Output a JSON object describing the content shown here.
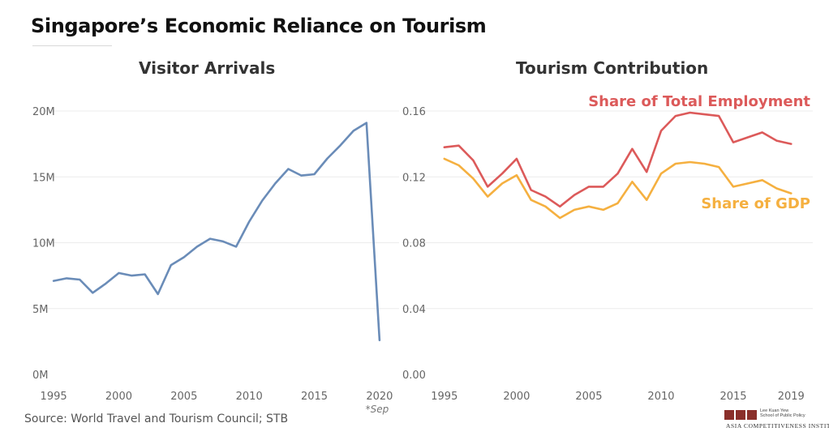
{
  "title": "Singapore’s Economic Reliance on Tourism",
  "source": "Source: World Travel and Tourism Council; STB",
  "logo": {
    "mark": "LKY",
    "line1": "Lee Kuan Yew",
    "line2": "School of Public Policy",
    "institute": "ASIA COMPETITIVENESS INSTITUTE"
  },
  "colors": {
    "arrivals": "#6a8cb8",
    "employment": "#dc5a5a",
    "gdp": "#f5b040",
    "grid": "#ececec",
    "tick": "#666666"
  },
  "chart_data": [
    {
      "type": "line",
      "title": "Visitor Arrivals",
      "xlabel": "",
      "ylabel": "",
      "xlim": [
        1993.5,
        2021.5
      ],
      "ylim": [
        0,
        20
      ],
      "x_ticks": [
        "1995",
        "2000",
        "2005",
        "2010",
        "2015",
        "2020"
      ],
      "x_tick_values": [
        1995,
        2000,
        2005,
        2010,
        2015,
        2020
      ],
      "x_tick_note": "*Sep",
      "y_ticks": [
        "0M",
        "5M",
        "10M",
        "15M",
        "20M"
      ],
      "y_tick_values": [
        0,
        5,
        10,
        15,
        20
      ],
      "series": [
        {
          "name": "Visitor Arrivals",
          "x": [
            1995,
            1996,
            1997,
            1998,
            1999,
            2000,
            2001,
            2002,
            2003,
            2004,
            2005,
            2006,
            2007,
            2008,
            2009,
            2010,
            2011,
            2012,
            2013,
            2014,
            2015,
            2016,
            2017,
            2018,
            2019,
            2020
          ],
          "values": [
            7.1,
            7.3,
            7.2,
            6.2,
            6.9,
            7.7,
            7.5,
            7.6,
            6.1,
            8.3,
            8.9,
            9.7,
            10.3,
            10.1,
            9.7,
            11.6,
            13.2,
            14.5,
            15.6,
            15.1,
            15.2,
            16.4,
            17.4,
            18.5,
            19.1,
            2.6
          ]
        }
      ]
    },
    {
      "type": "line",
      "title": "Tourism Contribution",
      "xlabel": "",
      "ylabel": "",
      "xlim": [
        1994,
        2020.5
      ],
      "ylim": [
        0,
        0.16
      ],
      "x_ticks": [
        "1995",
        "2000",
        "2005",
        "2010",
        "2015",
        "2019"
      ],
      "x_tick_values": [
        1995,
        2000,
        2005,
        2010,
        2015,
        2019
      ],
      "y_ticks": [
        "0.00",
        "0.04",
        "0.08",
        "0.12",
        "0.16"
      ],
      "y_tick_values": [
        0,
        0.04,
        0.08,
        0.12,
        0.16
      ],
      "series": [
        {
          "name": "Share of Total Employment",
          "x": [
            1995,
            1996,
            1997,
            1998,
            1999,
            2000,
            2001,
            2002,
            2003,
            2004,
            2005,
            2006,
            2007,
            2008,
            2009,
            2010,
            2011,
            2012,
            2013,
            2014,
            2015,
            2016,
            2017,
            2018,
            2019
          ],
          "values": [
            0.138,
            0.139,
            0.13,
            0.114,
            0.122,
            0.131,
            0.112,
            0.108,
            0.102,
            0.109,
            0.114,
            0.114,
            0.122,
            0.137,
            0.123,
            0.148,
            0.157,
            0.159,
            0.158,
            0.157,
            0.141,
            0.144,
            0.147,
            0.142,
            0.14
          ]
        },
        {
          "name": "Share of GDP",
          "x": [
            1995,
            1996,
            1997,
            1998,
            1999,
            2000,
            2001,
            2002,
            2003,
            2004,
            2005,
            2006,
            2007,
            2008,
            2009,
            2010,
            2011,
            2012,
            2013,
            2014,
            2015,
            2016,
            2017,
            2018,
            2019
          ],
          "values": [
            0.131,
            0.127,
            0.119,
            0.108,
            0.116,
            0.121,
            0.106,
            0.102,
            0.095,
            0.1,
            0.102,
            0.1,
            0.104,
            0.117,
            0.106,
            0.122,
            0.128,
            0.129,
            0.128,
            0.126,
            0.114,
            0.116,
            0.118,
            0.113,
            0.11
          ]
        }
      ]
    }
  ]
}
